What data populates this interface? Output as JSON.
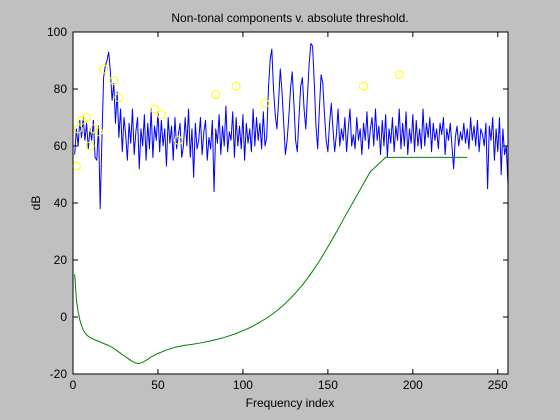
{
  "chart_data": {
    "type": "line",
    "title": "Non-tonal components v. absolute threshold.",
    "xlabel": "Frequency index",
    "ylabel": "dB",
    "xlim": [
      0,
      256
    ],
    "ylim": [
      -20,
      100
    ],
    "xticks": [
      0,
      50,
      100,
      150,
      200,
      250
    ],
    "yticks": [
      -20,
      0,
      20,
      40,
      60,
      80,
      100
    ],
    "grid": false,
    "legend": null,
    "colors": {
      "figure_bg": "#c0c0c0",
      "axes_bg": "#ffffff",
      "spectrum": "#0000ff",
      "threshold": "#008000",
      "markers": "#ffff00"
    },
    "series": [
      {
        "style": "line",
        "color": "#0000ff",
        "points": [
          [
            1,
            57
          ],
          [
            2,
            66
          ],
          [
            3,
            60
          ],
          [
            4,
            69
          ],
          [
            5,
            63
          ],
          [
            6,
            70
          ],
          [
            7,
            62
          ],
          [
            8,
            68
          ],
          [
            9,
            59
          ],
          [
            10,
            66
          ],
          [
            11,
            62
          ],
          [
            12,
            69
          ],
          [
            13,
            56
          ],
          [
            14,
            55
          ],
          [
            15,
            67
          ],
          [
            16,
            38
          ],
          [
            17,
            62
          ],
          [
            18,
            84
          ],
          [
            19,
            88
          ],
          [
            20,
            90
          ],
          [
            21,
            93
          ],
          [
            22,
            86
          ],
          [
            23,
            76
          ],
          [
            24,
            82
          ],
          [
            25,
            68
          ],
          [
            26,
            79
          ],
          [
            27,
            63
          ],
          [
            28,
            73
          ],
          [
            29,
            58
          ],
          [
            30,
            70
          ],
          [
            31,
            64
          ],
          [
            32,
            55
          ],
          [
            33,
            68
          ],
          [
            34,
            61
          ],
          [
            35,
            73
          ],
          [
            36,
            57
          ],
          [
            37,
            65
          ],
          [
            38,
            70
          ],
          [
            39,
            52
          ],
          [
            40,
            66
          ],
          [
            41,
            60
          ],
          [
            42,
            71
          ],
          [
            43,
            55
          ],
          [
            44,
            68
          ],
          [
            45,
            59
          ],
          [
            46,
            73
          ],
          [
            47,
            56
          ],
          [
            48,
            67
          ],
          [
            49,
            62
          ],
          [
            50,
            72
          ],
          [
            51,
            58
          ],
          [
            52,
            69
          ],
          [
            53,
            60
          ],
          [
            54,
            66
          ],
          [
            55,
            53
          ],
          [
            56,
            70
          ],
          [
            57,
            61
          ],
          [
            58,
            67
          ],
          [
            59,
            55
          ],
          [
            60,
            70
          ],
          [
            61,
            59
          ],
          [
            62,
            64
          ],
          [
            63,
            68
          ],
          [
            64,
            56
          ],
          [
            65,
            60
          ],
          [
            66,
            70
          ],
          [
            67,
            60
          ],
          [
            68,
            73
          ],
          [
            69,
            56
          ],
          [
            70,
            66
          ],
          [
            71,
            49
          ],
          [
            72,
            68
          ],
          [
            73,
            59
          ],
          [
            74,
            62
          ],
          [
            75,
            70
          ],
          [
            76,
            57
          ],
          [
            77,
            65
          ],
          [
            78,
            69
          ],
          [
            79,
            55
          ],
          [
            80,
            63
          ],
          [
            81,
            59
          ],
          [
            82,
            69
          ],
          [
            83,
            44
          ],
          [
            84,
            66
          ],
          [
            85,
            61
          ],
          [
            86,
            71
          ],
          [
            87,
            57
          ],
          [
            88,
            67
          ],
          [
            89,
            60
          ],
          [
            90,
            74
          ],
          [
            91,
            58
          ],
          [
            92,
            65
          ],
          [
            93,
            62
          ],
          [
            94,
            72
          ],
          [
            95,
            56
          ],
          [
            96,
            70
          ],
          [
            97,
            60
          ],
          [
            98,
            67
          ],
          [
            99,
            59
          ],
          [
            100,
            71
          ],
          [
            101,
            55
          ],
          [
            102,
            68
          ],
          [
            103,
            61
          ],
          [
            104,
            66
          ],
          [
            105,
            58
          ],
          [
            106,
            73
          ],
          [
            107,
            60
          ],
          [
            108,
            70
          ],
          [
            109,
            62
          ],
          [
            110,
            68
          ],
          [
            111,
            59
          ],
          [
            112,
            72
          ],
          [
            113,
            60
          ],
          [
            114,
            63
          ],
          [
            115,
            80
          ],
          [
            116,
            90
          ],
          [
            117,
            94
          ],
          [
            118,
            80
          ],
          [
            119,
            71
          ],
          [
            120,
            66
          ],
          [
            121,
            76
          ],
          [
            122,
            87
          ],
          [
            123,
            79
          ],
          [
            124,
            68
          ],
          [
            125,
            57
          ],
          [
            126,
            62
          ],
          [
            127,
            70
          ],
          [
            128,
            80
          ],
          [
            129,
            86
          ],
          [
            130,
            75
          ],
          [
            131,
            62
          ],
          [
            132,
            58
          ],
          [
            133,
            70
          ],
          [
            134,
            81
          ],
          [
            135,
            84
          ],
          [
            136,
            73
          ],
          [
            137,
            66
          ],
          [
            138,
            78
          ],
          [
            139,
            89
          ],
          [
            140,
            96
          ],
          [
            141,
            95
          ],
          [
            142,
            82
          ],
          [
            143,
            67
          ],
          [
            144,
            59
          ],
          [
            145,
            73
          ],
          [
            146,
            85
          ],
          [
            147,
            82
          ],
          [
            148,
            71
          ],
          [
            149,
            62
          ],
          [
            150,
            58
          ],
          [
            151,
            68
          ],
          [
            152,
            75
          ],
          [
            153,
            66
          ],
          [
            154,
            58
          ],
          [
            155,
            64
          ],
          [
            156,
            73
          ],
          [
            157,
            60
          ],
          [
            158,
            66
          ],
          [
            159,
            62
          ],
          [
            160,
            70
          ],
          [
            161,
            58
          ],
          [
            162,
            66
          ],
          [
            163,
            73
          ],
          [
            164,
            60
          ],
          [
            165,
            64
          ],
          [
            166,
            59
          ],
          [
            167,
            70
          ],
          [
            168,
            62
          ],
          [
            169,
            66
          ],
          [
            170,
            57
          ],
          [
            171,
            68
          ],
          [
            172,
            62
          ],
          [
            173,
            72
          ],
          [
            174,
            59
          ],
          [
            175,
            66
          ],
          [
            176,
            70
          ],
          [
            177,
            60
          ],
          [
            178,
            73
          ],
          [
            179,
            62
          ],
          [
            180,
            67
          ],
          [
            181,
            57
          ],
          [
            182,
            69
          ],
          [
            183,
            60
          ],
          [
            184,
            71
          ],
          [
            185,
            56
          ],
          [
            186,
            66
          ],
          [
            187,
            61
          ],
          [
            188,
            70
          ],
          [
            189,
            58
          ],
          [
            190,
            67
          ],
          [
            191,
            62
          ],
          [
            192,
            73
          ],
          [
            193,
            59
          ],
          [
            194,
            68
          ],
          [
            195,
            60
          ],
          [
            196,
            72
          ],
          [
            197,
            57
          ],
          [
            198,
            66
          ],
          [
            199,
            61
          ],
          [
            200,
            71
          ],
          [
            201,
            58
          ],
          [
            202,
            69
          ],
          [
            203,
            60
          ],
          [
            204,
            66
          ],
          [
            205,
            59
          ],
          [
            206,
            73
          ],
          [
            207,
            60
          ],
          [
            208,
            68
          ],
          [
            209,
            63
          ],
          [
            210,
            70
          ],
          [
            211,
            58
          ],
          [
            212,
            68
          ],
          [
            213,
            62
          ],
          [
            214,
            66
          ],
          [
            215,
            59
          ],
          [
            216,
            68
          ],
          [
            217,
            64
          ],
          [
            218,
            70
          ],
          [
            219,
            57
          ],
          [
            220,
            66
          ],
          [
            221,
            62
          ],
          [
            222,
            68
          ],
          [
            223,
            60
          ],
          [
            224,
            52
          ],
          [
            225,
            63
          ],
          [
            226,
            67
          ],
          [
            227,
            60
          ],
          [
            228,
            65
          ],
          [
            229,
            62
          ],
          [
            230,
            68
          ],
          [
            231,
            61
          ],
          [
            232,
            66
          ],
          [
            233,
            59
          ],
          [
            234,
            70
          ],
          [
            235,
            62
          ],
          [
            236,
            67
          ],
          [
            237,
            60
          ],
          [
            238,
            69
          ],
          [
            239,
            58
          ],
          [
            240,
            66
          ],
          [
            241,
            64
          ],
          [
            242,
            60
          ],
          [
            243,
            68
          ],
          [
            244,
            45
          ],
          [
            245,
            67
          ],
          [
            246,
            62
          ],
          [
            247,
            70
          ],
          [
            248,
            55
          ],
          [
            249,
            66
          ],
          [
            250,
            58
          ],
          [
            251,
            70
          ],
          [
            252,
            50
          ],
          [
            253,
            66
          ],
          [
            254,
            57
          ],
          [
            255,
            60
          ],
          [
            256,
            46
          ]
        ]
      },
      {
        "style": "line",
        "color": "#008000",
        "points": [
          [
            1,
            15
          ],
          [
            2,
            6
          ],
          [
            3,
            2
          ],
          [
            4,
            -1
          ],
          [
            5,
            -3
          ],
          [
            6,
            -4.5
          ],
          [
            7,
            -5.5
          ],
          [
            8,
            -6.3
          ],
          [
            10,
            -7.2
          ],
          [
            12,
            -7.8
          ],
          [
            15,
            -8.5
          ],
          [
            18,
            -9.3
          ],
          [
            21,
            -10
          ],
          [
            24,
            -11
          ],
          [
            27,
            -12.3
          ],
          [
            30,
            -13.6
          ],
          [
            33,
            -14.8
          ],
          [
            35,
            -15.6
          ],
          [
            37,
            -16.2
          ],
          [
            39,
            -16.3
          ],
          [
            41,
            -15.9
          ],
          [
            43,
            -15.2
          ],
          [
            46,
            -14
          ],
          [
            50,
            -12.8
          ],
          [
            55,
            -11.6
          ],
          [
            60,
            -10.6
          ],
          [
            65,
            -10
          ],
          [
            70,
            -9.6
          ],
          [
            75,
            -9.1
          ],
          [
            80,
            -8.5
          ],
          [
            85,
            -7.8
          ],
          [
            90,
            -7
          ],
          [
            95,
            -6
          ],
          [
            100,
            -4.8
          ],
          [
            105,
            -3.5
          ],
          [
            110,
            -1.8
          ],
          [
            115,
            0
          ],
          [
            120,
            2.2
          ],
          [
            125,
            4.8
          ],
          [
            130,
            7.8
          ],
          [
            135,
            11.2
          ],
          [
            140,
            15.2
          ],
          [
            145,
            19.6
          ],
          [
            150,
            24.6
          ],
          [
            155,
            29.8
          ],
          [
            160,
            35.2
          ],
          [
            165,
            40.5
          ],
          [
            170,
            45.8
          ],
          [
            175,
            51
          ],
          [
            180,
            53.8
          ],
          [
            184,
            56
          ],
          [
            188,
            56
          ],
          [
            200,
            56
          ],
          [
            215,
            56
          ],
          [
            232,
            56
          ]
        ]
      },
      {
        "style": "markers",
        "marker": "circle",
        "color": "#ffff00",
        "points": [
          [
            2,
            53
          ],
          [
            3,
            66
          ],
          [
            5,
            69
          ],
          [
            8,
            70
          ],
          [
            10,
            60
          ],
          [
            12,
            66
          ],
          [
            15,
            65
          ],
          [
            18,
            87
          ],
          [
            24,
            83
          ],
          [
            27,
            77
          ],
          [
            48,
            73
          ],
          [
            52,
            71
          ],
          [
            62,
            62
          ],
          [
            84,
            78
          ],
          [
            96,
            81
          ],
          [
            113,
            75
          ],
          [
            171,
            81
          ],
          [
            192,
            85
          ]
        ]
      }
    ]
  }
}
